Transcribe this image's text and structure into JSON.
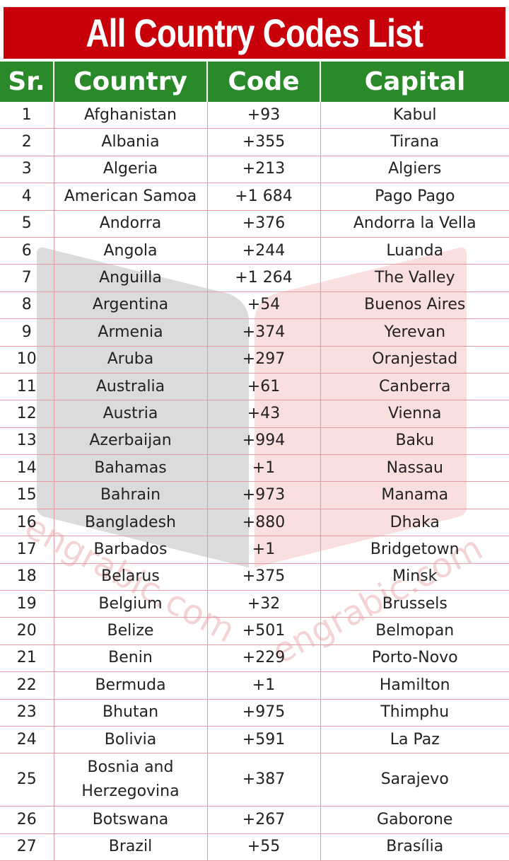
{
  "title": "All Country Codes List",
  "colors": {
    "title_bg": "#c8000a",
    "header_bg": "#2a8a2a",
    "grid_line": "#e79aa3"
  },
  "watermark": "engrabic.com",
  "headers": [
    "Sr.",
    "Country",
    "Code",
    "Capital"
  ],
  "rows": [
    [
      "1",
      "Afghanistan",
      "+93",
      "Kabul"
    ],
    [
      "2",
      "Albania",
      "+355",
      "Tirana"
    ],
    [
      "3",
      "Algeria",
      "+213",
      "Algiers"
    ],
    [
      "4",
      "American Samoa",
      "+1 684",
      "Pago Pago"
    ],
    [
      "5",
      "Andorra",
      "+376",
      "Andorra la Vella"
    ],
    [
      "6",
      "Angola",
      "+244",
      "Luanda"
    ],
    [
      "7",
      "Anguilla",
      "+1 264",
      "The Valley"
    ],
    [
      "8",
      "Argentina",
      "+54",
      "Buenos Aires"
    ],
    [
      "9",
      "Armenia",
      "+374",
      "Yerevan"
    ],
    [
      "10",
      "Aruba",
      "+297",
      "Oranjestad"
    ],
    [
      "11",
      "Australia",
      "+61",
      "Canberra"
    ],
    [
      "12",
      "Austria",
      "+43",
      "Vienna"
    ],
    [
      "13",
      "Azerbaijan",
      "+994",
      "Baku"
    ],
    [
      "14",
      "Bahamas",
      "+1",
      "Nassau"
    ],
    [
      "15",
      "Bahrain",
      "+973",
      "Manama"
    ],
    [
      "16",
      "Bangladesh",
      "+880",
      "Dhaka"
    ],
    [
      "17",
      "Barbados",
      "+1",
      "Bridgetown"
    ],
    [
      "18",
      "Belarus",
      "+375",
      "Minsk"
    ],
    [
      "19",
      "Belgium",
      "+32",
      "Brussels"
    ],
    [
      "20",
      "Belize",
      "+501",
      "Belmopan"
    ],
    [
      "21",
      "Benin",
      "+229",
      "Porto-Novo"
    ],
    [
      "22",
      "Bermuda",
      "+1",
      "Hamilton"
    ],
    [
      "23",
      "Bhutan",
      "+975",
      "Thimphu"
    ],
    [
      "24",
      "Bolivia",
      "+591",
      "La Paz"
    ],
    [
      "25",
      "Bosnia and Herzegovina",
      "+387",
      "Sarajevo"
    ],
    [
      "26",
      "Botswana",
      "+267",
      "Gaborone"
    ],
    [
      "27",
      "Brazil",
      "+55",
      "Brasília"
    ]
  ]
}
